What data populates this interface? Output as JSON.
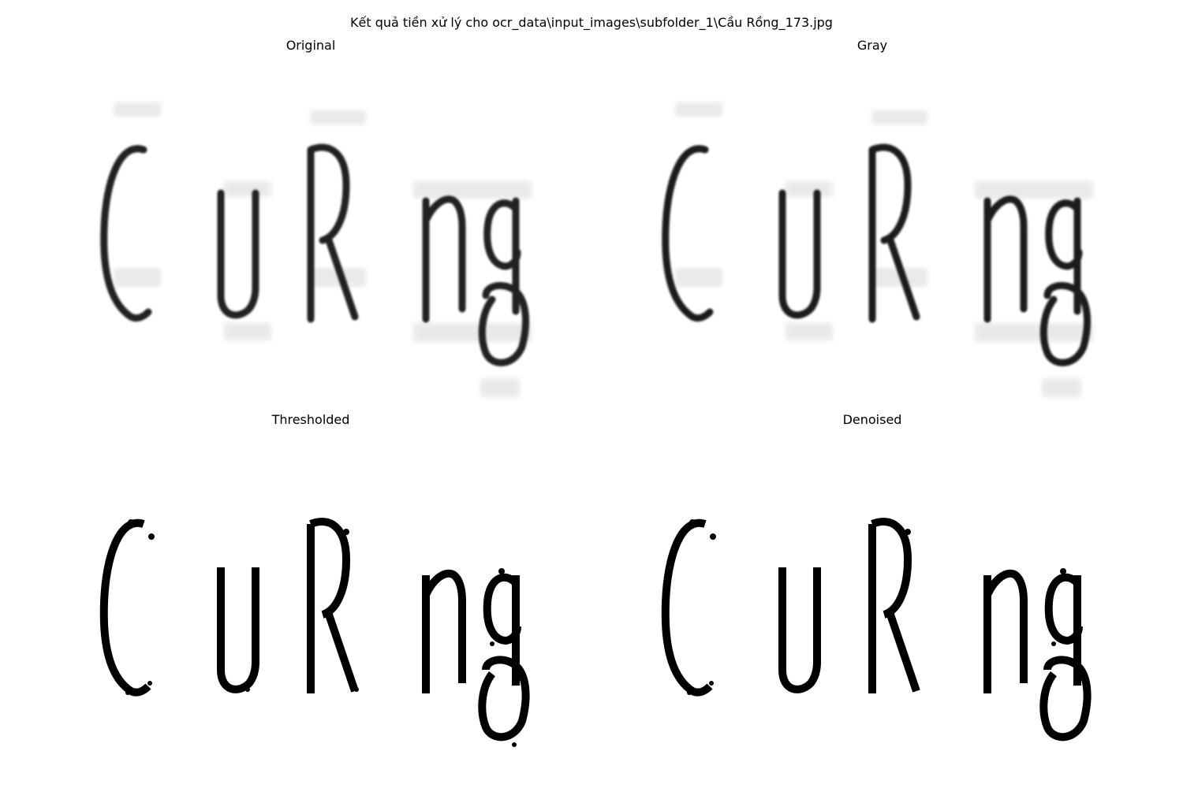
{
  "figure": {
    "suptitle": "Kết quả tiền xử lý cho ocr_data\\input_images\\subfolder_1\\Cầu Rồng_173.jpg"
  },
  "panels": [
    {
      "id": "original",
      "title": "Original",
      "render": "soft",
      "ink": "#222222"
    },
    {
      "id": "gray",
      "title": "Gray",
      "render": "soft",
      "ink": "#1c1c1c"
    },
    {
      "id": "thresholded",
      "title": "Thresholded",
      "render": "binary",
      "ink": "#000000"
    },
    {
      "id": "denoised",
      "title": "Denoised",
      "render": "binary",
      "ink": "#000000"
    }
  ],
  "glyph_text": "CuRng"
}
